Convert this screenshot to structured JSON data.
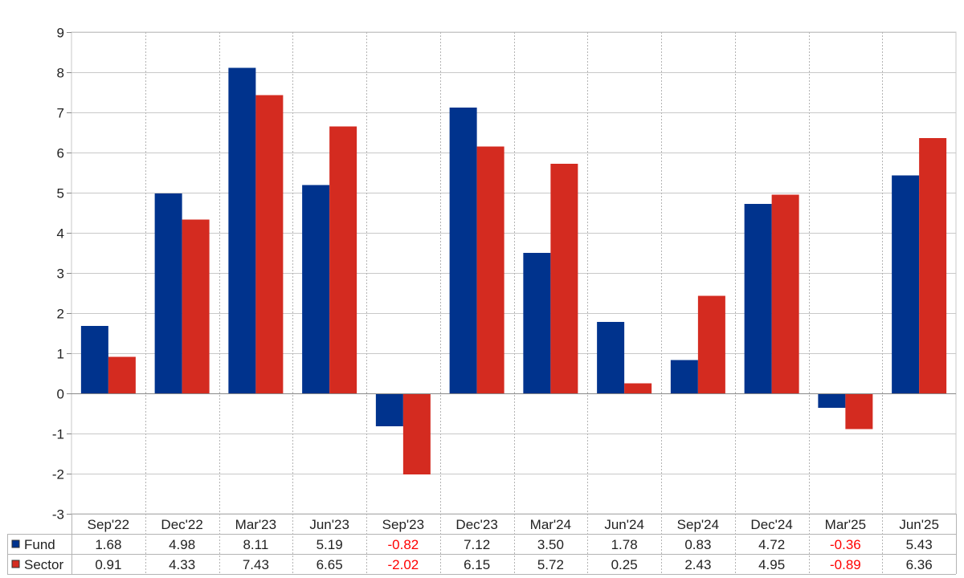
{
  "chart_data": {
    "type": "bar",
    "categories": [
      "Sep'22",
      "Dec'22",
      "Mar'23",
      "Jun'23",
      "Sep'23",
      "Dec'23",
      "Mar'24",
      "Jun'24",
      "Sep'24",
      "Dec'24",
      "Mar'25",
      "Jun'25"
    ],
    "series": [
      {
        "name": "Fund",
        "color": "#00338d",
        "values": [
          1.68,
          4.98,
          8.11,
          5.19,
          -0.82,
          7.12,
          3.5,
          1.78,
          0.83,
          4.72,
          -0.36,
          5.43
        ],
        "labels": [
          "1.68",
          "4.98",
          "8.11",
          "5.19",
          "-0.82",
          "7.12",
          "3.50",
          "1.78",
          "0.83",
          "4.72",
          "-0.36",
          "5.43"
        ]
      },
      {
        "name": "Sector",
        "color": "#d42b20",
        "values": [
          0.91,
          4.33,
          7.43,
          6.65,
          -2.02,
          6.15,
          5.72,
          0.25,
          2.43,
          4.95,
          -0.89,
          6.36
        ],
        "labels": [
          "0.91",
          "4.33",
          "7.43",
          "6.65",
          "-2.02",
          "6.15",
          "5.72",
          "0.25",
          "2.43",
          "4.95",
          "-0.89",
          "6.36"
        ]
      }
    ],
    "ylim": [
      -3,
      9
    ],
    "yticks": [
      "-3",
      "-2",
      "-1",
      "0",
      "1",
      "2",
      "3",
      "4",
      "5",
      "6",
      "7",
      "8",
      "9"
    ],
    "title": "",
    "xlabel": "",
    "ylabel": "",
    "grid": true,
    "legend": "data-table-left",
    "negative_value_color": "#ff0000"
  }
}
